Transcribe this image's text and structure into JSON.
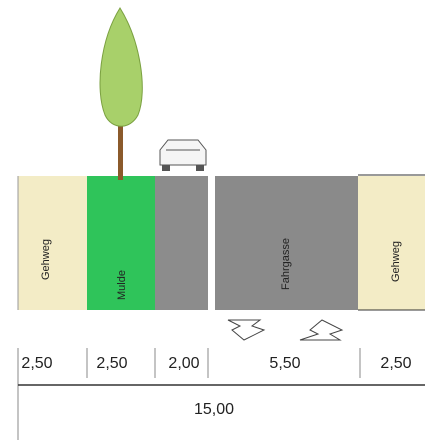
{
  "sections": [
    {
      "label": "Gehweg",
      "width": "2,50"
    },
    {
      "label": "Mulde",
      "width": "2,50"
    },
    {
      "label": null,
      "width": "2,00"
    },
    {
      "label": "Fahrgasse",
      "width": "5,50"
    },
    {
      "label": "Gehweg",
      "width": "2,50"
    }
  ],
  "total": "15,00"
}
